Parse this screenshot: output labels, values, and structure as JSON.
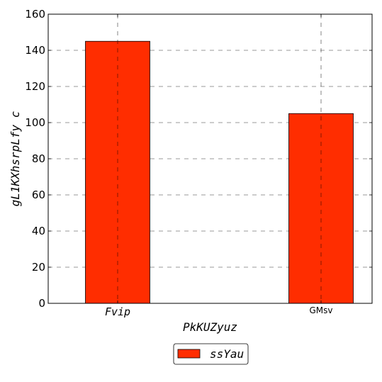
{
  "chart_data": {
    "type": "bar",
    "categories": [
      "Fvip",
      "GMsv"
    ],
    "series": [
      {
        "name": "ssYau",
        "values": [
          145,
          105
        ],
        "color": "#ff2d00"
      }
    ],
    "xlabel": "PkKUZyuz",
    "ylabel": "gL1KXhsrpLfy c",
    "ylim": [
      0,
      160
    ],
    "yticks": [
      0,
      20,
      40,
      60,
      80,
      100,
      120,
      140,
      160
    ],
    "grid": true,
    "legend_position": "bottom-center"
  }
}
